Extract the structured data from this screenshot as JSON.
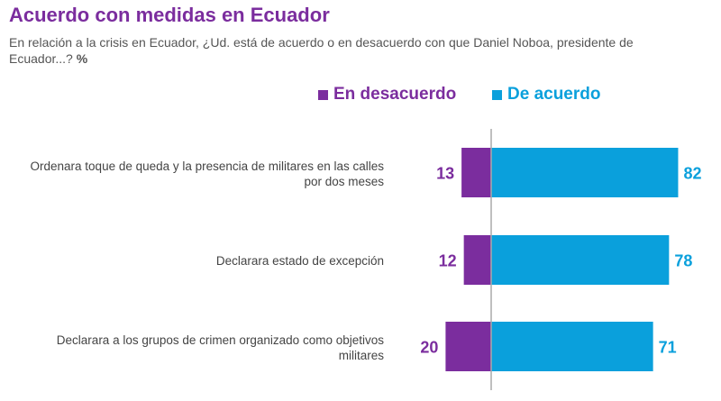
{
  "title": "Acuerdo con medidas en Ecuador",
  "subtitle": "En relación a la crisis en Ecuador, ¿Ud. está de acuerdo o en desacuerdo con que Daniel Noboa, presidente de Ecuador...?",
  "subtitle_unit": "%",
  "colors": {
    "desacuerdo": "#7b2d9e",
    "acuerdo": "#0aa0dc",
    "axis": "#aaaaaa"
  },
  "chart_data": {
    "type": "bar",
    "orientation": "horizontal-diverging",
    "title": "Acuerdo con medidas en Ecuador",
    "categories": [
      "Ordenara toque de queda y la presencia de militares en las calles por dos meses",
      "Declarara estado de excepción",
      "Declarara a los grupos de crimen organizado como objetivos militares"
    ],
    "series": [
      {
        "name": "En desacuerdo",
        "values": [
          13,
          12,
          20
        ],
        "labels": [
          "13",
          "12",
          "20"
        ]
      },
      {
        "name": "De acuerdo",
        "values": [
          82,
          78,
          71
        ],
        "labels": [
          "82",
          "78",
          "71"
        ]
      }
    ],
    "legend_position": "top-right",
    "grid": false
  }
}
